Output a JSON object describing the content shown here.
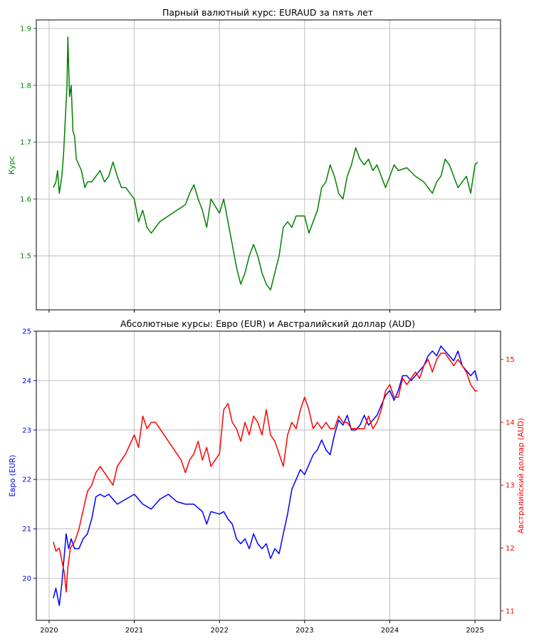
{
  "chart_data": [
    {
      "type": "line",
      "title": "Парный валютный курс: EURAUD за пять лет",
      "xlabel": "",
      "ylabel": "Курс",
      "ylabel_color": "#008000",
      "xlim": [
        2019.85,
        2025.3
      ],
      "ylim": [
        1.405,
        1.915
      ],
      "yticks": [
        "1.5",
        "1.6",
        "1.7",
        "1.8",
        "1.9"
      ],
      "grid": true,
      "series": [
        {
          "color": "#008000",
          "x": [
            2020.05,
            2020.08,
            2020.1,
            2020.12,
            2020.15,
            2020.17,
            2020.19,
            2020.21,
            2020.22,
            2020.23,
            2020.24,
            2020.26,
            2020.28,
            2020.3,
            2020.32,
            2020.35,
            2020.38,
            2020.42,
            2020.45,
            2020.5,
            2020.55,
            2020.6,
            2020.65,
            2020.7,
            2020.75,
            2020.8,
            2020.85,
            2020.9,
            2020.95,
            2021.0,
            2021.05,
            2021.1,
            2021.15,
            2021.2,
            2021.3,
            2021.4,
            2021.5,
            2021.6,
            2021.65,
            2021.7,
            2021.75,
            2021.8,
            2021.85,
            2021.9,
            2022.0,
            2022.05,
            2022.1,
            2022.15,
            2022.2,
            2022.25,
            2022.3,
            2022.35,
            2022.4,
            2022.45,
            2022.5,
            2022.55,
            2022.6,
            2022.65,
            2022.7,
            2022.75,
            2022.8,
            2022.85,
            2022.9,
            2023.0,
            2023.05,
            2023.1,
            2023.15,
            2023.2,
            2023.25,
            2023.3,
            2023.35,
            2023.4,
            2023.45,
            2023.5,
            2023.55,
            2023.6,
            2023.65,
            2023.7,
            2023.75,
            2023.8,
            2023.85,
            2023.9,
            2023.95,
            2024.0,
            2024.05,
            2024.1,
            2024.2,
            2024.3,
            2024.4,
            2024.45,
            2024.5,
            2024.55,
            2024.6,
            2024.65,
            2024.7,
            2024.75,
            2024.8,
            2024.85,
            2024.9,
            2024.95,
            2025.0,
            2025.03
          ],
          "y": [
            1.62,
            1.63,
            1.65,
            1.61,
            1.64,
            1.68,
            1.74,
            1.8,
            1.885,
            1.83,
            1.78,
            1.8,
            1.72,
            1.71,
            1.67,
            1.66,
            1.65,
            1.62,
            1.63,
            1.63,
            1.64,
            1.65,
            1.63,
            1.64,
            1.665,
            1.64,
            1.62,
            1.62,
            1.61,
            1.6,
            1.56,
            1.58,
            1.55,
            1.54,
            1.56,
            1.57,
            1.58,
            1.59,
            1.61,
            1.625,
            1.6,
            1.58,
            1.55,
            1.6,
            1.575,
            1.6,
            1.56,
            1.52,
            1.48,
            1.45,
            1.47,
            1.5,
            1.52,
            1.5,
            1.47,
            1.45,
            1.44,
            1.47,
            1.5,
            1.55,
            1.56,
            1.55,
            1.57,
            1.57,
            1.54,
            1.56,
            1.58,
            1.62,
            1.63,
            1.66,
            1.64,
            1.61,
            1.6,
            1.64,
            1.66,
            1.69,
            1.67,
            1.66,
            1.67,
            1.65,
            1.66,
            1.64,
            1.62,
            1.64,
            1.66,
            1.65,
            1.655,
            1.64,
            1.63,
            1.62,
            1.61,
            1.63,
            1.64,
            1.67,
            1.66,
            1.64,
            1.62,
            1.63,
            1.64,
            1.61,
            1.66,
            1.665
          ]
        }
      ]
    },
    {
      "type": "line",
      "title": "Абсолютные курсы: Евро (EUR) и Австралийский доллар (AUD)",
      "xlabel": "",
      "xlim": [
        2019.85,
        2025.3
      ],
      "xticks": [
        "2020",
        "2021",
        "2022",
        "2023",
        "2024",
        "2025"
      ],
      "grid": true,
      "axes": {
        "left": {
          "label": "Евро (EUR)",
          "color": "#0000ff",
          "ylim": [
            19.15,
            25.0
          ],
          "ticks": [
            "20",
            "21",
            "22",
            "23",
            "24",
            "25"
          ]
        },
        "right": {
          "label": "Австралийский доллар (AUD)",
          "color": "#ff0000",
          "ylim": [
            10.85,
            15.45
          ],
          "ticks": [
            "11",
            "12",
            "13",
            "14",
            "15"
          ]
        }
      },
      "series": [
        {
          "color": "#0000ff",
          "axis": "left",
          "x": [
            2020.05,
            2020.08,
            2020.12,
            2020.15,
            2020.18,
            2020.2,
            2020.23,
            2020.26,
            2020.3,
            2020.35,
            2020.4,
            2020.45,
            2020.5,
            2020.55,
            2020.6,
            2020.65,
            2020.7,
            2020.8,
            2020.9,
            2021.0,
            2021.1,
            2021.2,
            2021.3,
            2021.4,
            2021.5,
            2021.6,
            2021.7,
            2021.8,
            2021.85,
            2021.9,
            2022.0,
            2022.05,
            2022.1,
            2022.15,
            2022.2,
            2022.25,
            2022.3,
            2022.35,
            2022.4,
            2022.45,
            2022.5,
            2022.55,
            2022.6,
            2022.65,
            2022.7,
            2022.75,
            2022.8,
            2022.85,
            2022.9,
            2022.95,
            2023.0,
            2023.05,
            2023.1,
            2023.15,
            2023.2,
            2023.25,
            2023.3,
            2023.35,
            2023.4,
            2023.45,
            2023.5,
            2023.55,
            2023.6,
            2023.65,
            2023.7,
            2023.75,
            2023.8,
            2023.85,
            2023.9,
            2023.95,
            2024.0,
            2024.05,
            2024.1,
            2024.15,
            2024.2,
            2024.25,
            2024.3,
            2024.35,
            2024.4,
            2024.45,
            2024.5,
            2024.55,
            2024.6,
            2024.65,
            2024.7,
            2024.75,
            2024.8,
            2024.85,
            2024.9,
            2024.95,
            2025.0,
            2025.03
          ],
          "y": [
            19.6,
            19.8,
            19.45,
            19.9,
            20.5,
            20.9,
            20.6,
            20.8,
            20.6,
            20.6,
            20.8,
            20.9,
            21.2,
            21.65,
            21.7,
            21.65,
            21.7,
            21.5,
            21.6,
            21.7,
            21.5,
            21.4,
            21.6,
            21.7,
            21.55,
            21.5,
            21.5,
            21.35,
            21.1,
            21.35,
            21.3,
            21.35,
            21.2,
            21.1,
            20.8,
            20.7,
            20.8,
            20.6,
            20.9,
            20.7,
            20.6,
            20.7,
            20.4,
            20.6,
            20.5,
            20.9,
            21.3,
            21.8,
            22.0,
            22.2,
            22.1,
            22.3,
            22.5,
            22.6,
            22.8,
            22.6,
            22.5,
            22.9,
            23.2,
            23.1,
            23.3,
            23.0,
            23.0,
            23.1,
            23.3,
            23.1,
            23.2,
            23.3,
            23.5,
            23.7,
            23.8,
            23.6,
            23.8,
            24.1,
            24.1,
            24.0,
            24.1,
            24.2,
            24.3,
            24.5,
            24.6,
            24.5,
            24.7,
            24.6,
            24.5,
            24.4,
            24.6,
            24.3,
            24.2,
            24.1,
            24.2,
            24.0
          ]
        },
        {
          "color": "#ff0000",
          "axis": "right",
          "x": [
            2020.05,
            2020.08,
            2020.12,
            2020.15,
            2020.18,
            2020.2,
            2020.22,
            2020.25,
            2020.3,
            2020.35,
            2020.4,
            2020.45,
            2020.5,
            2020.55,
            2020.6,
            2020.65,
            2020.7,
            2020.75,
            2020.8,
            2020.85,
            2020.9,
            2021.0,
            2021.05,
            2021.1,
            2021.15,
            2021.2,
            2021.25,
            2021.3,
            2021.35,
            2021.4,
            2021.45,
            2021.5,
            2021.55,
            2021.6,
            2021.65,
            2021.7,
            2021.75,
            2021.8,
            2021.85,
            2021.9,
            2022.0,
            2022.05,
            2022.1,
            2022.15,
            2022.2,
            2022.25,
            2022.3,
            2022.35,
            2022.4,
            2022.45,
            2022.5,
            2022.55,
            2022.6,
            2022.65,
            2022.7,
            2022.75,
            2022.8,
            2022.85,
            2022.9,
            2022.95,
            2023.0,
            2023.05,
            2023.1,
            2023.15,
            2023.2,
            2023.25,
            2023.3,
            2023.35,
            2023.4,
            2023.45,
            2023.5,
            2023.55,
            2023.6,
            2023.65,
            2023.7,
            2023.75,
            2023.8,
            2023.85,
            2023.9,
            2023.95,
            2024.0,
            2024.05,
            2024.1,
            2024.15,
            2024.2,
            2024.25,
            2024.3,
            2024.35,
            2024.4,
            2024.45,
            2024.5,
            2024.55,
            2024.6,
            2024.65,
            2024.7,
            2024.75,
            2024.8,
            2024.85,
            2024.9,
            2024.95,
            2025.0,
            2025.03
          ],
          "y": [
            12.1,
            11.95,
            12.0,
            11.8,
            11.6,
            11.3,
            11.7,
            12.0,
            12.1,
            12.3,
            12.6,
            12.9,
            13.0,
            13.2,
            13.3,
            13.2,
            13.1,
            13.0,
            13.3,
            13.4,
            13.5,
            13.8,
            13.6,
            14.1,
            13.9,
            14.0,
            14.0,
            13.9,
            13.8,
            13.7,
            13.6,
            13.5,
            13.4,
            13.2,
            13.4,
            13.5,
            13.7,
            13.4,
            13.6,
            13.3,
            13.5,
            14.2,
            14.3,
            14.0,
            13.9,
            13.7,
            14.0,
            13.8,
            14.1,
            14.0,
            13.8,
            14.2,
            13.8,
            13.7,
            13.5,
            13.3,
            13.8,
            14.0,
            13.9,
            14.2,
            14.4,
            14.2,
            13.9,
            14.0,
            13.9,
            14.0,
            13.9,
            13.9,
            14.1,
            14.0,
            14.0,
            13.9,
            13.9,
            13.9,
            13.9,
            14.1,
            13.9,
            14.0,
            14.2,
            14.5,
            14.6,
            14.4,
            14.4,
            14.7,
            14.6,
            14.7,
            14.8,
            14.7,
            14.9,
            15.0,
            14.8,
            15.0,
            15.1,
            15.1,
            15.0,
            14.9,
            15.0,
            14.9,
            14.8,
            14.6,
            14.5,
            14.5
          ]
        }
      ]
    }
  ]
}
